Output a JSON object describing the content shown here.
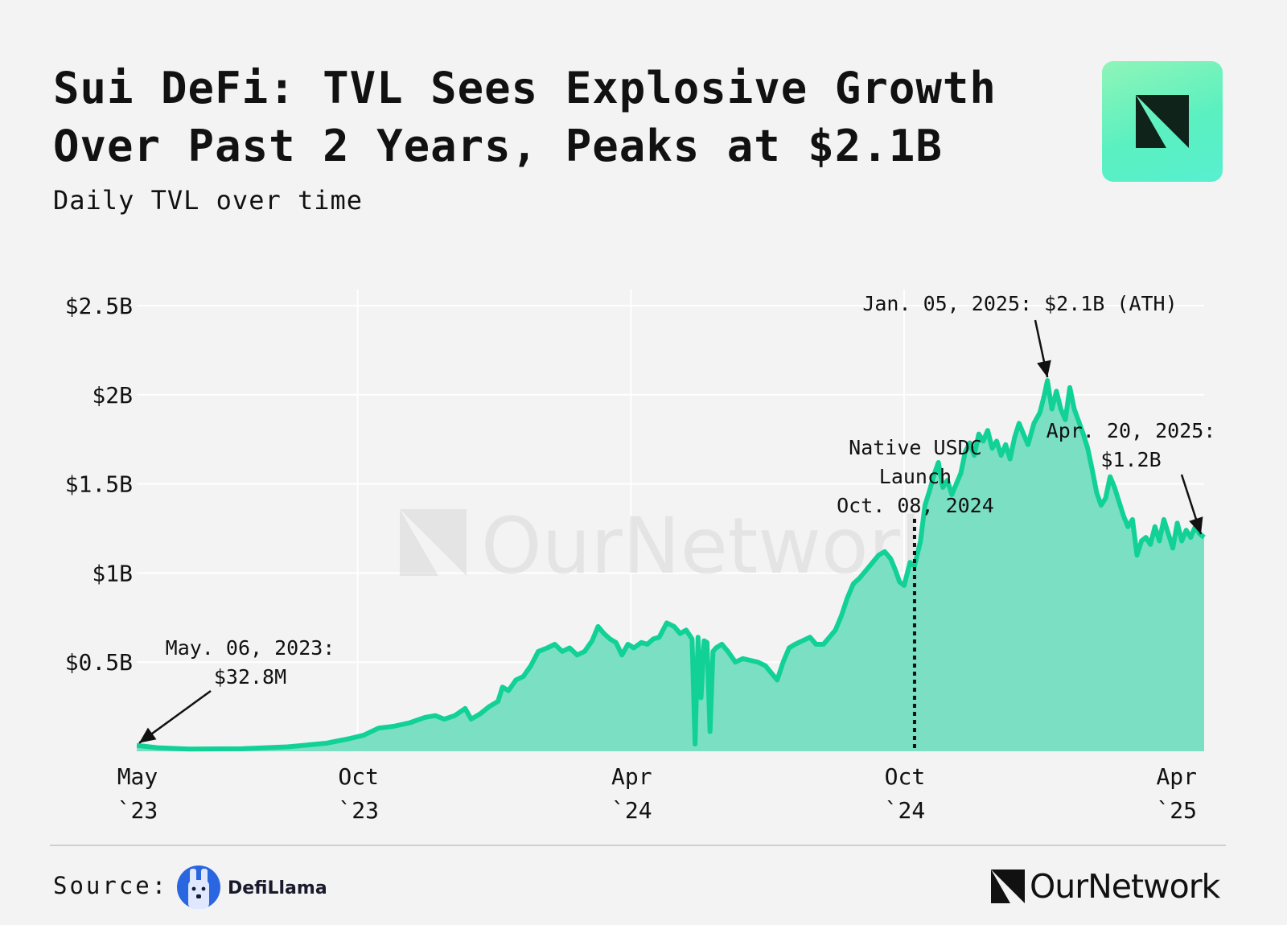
{
  "header": {
    "title": "Sui DeFi: TVL Sees Explosive Growth Over Past 2 Years, Peaks at $2.1B",
    "subtitle": "Daily TVL over time"
  },
  "watermark": "OurNetwork",
  "footer": {
    "source_label": "Source:",
    "source_name": "DefiLlama",
    "brand": "OurNetwork"
  },
  "colors": {
    "line": "#12d196",
    "fill": "#7bdfc4",
    "grid": "#ffffff",
    "badge": "#6ff2c0"
  },
  "chart_data": {
    "type": "area",
    "title": "Sui DeFi: TVL Sees Explosive Growth Over Past 2 Years, Peaks at $2.1B",
    "subtitle": "Daily TVL over time",
    "xlabel": "",
    "ylabel": "",
    "x_range": [
      "2023-05-06",
      "2025-04-20"
    ],
    "y_range": [
      0,
      2.6
    ],
    "y_unit": "$B",
    "yticks": [
      {
        "value": 0.5,
        "label": "$0.5B"
      },
      {
        "value": 1.0,
        "label": "$1B"
      },
      {
        "value": 1.5,
        "label": "$1.5B"
      },
      {
        "value": 2.0,
        "label": "$2B"
      },
      {
        "value": 2.5,
        "label": "$2.5B"
      }
    ],
    "xticks": [
      {
        "date": "2023-05-06",
        "line1": "May",
        "line2": "`23"
      },
      {
        "date": "2023-10-01",
        "line1": "Oct",
        "line2": "`23"
      },
      {
        "date": "2024-04-01",
        "line1": "Apr",
        "line2": "`24"
      },
      {
        "date": "2024-10-01",
        "line1": "Oct",
        "line2": "`24"
      },
      {
        "date": "2025-04-01",
        "line1": "Apr",
        "line2": "`25"
      }
    ],
    "grid": true,
    "series": [
      {
        "points": [
          [
            "2023-05-06",
            0.033
          ],
          [
            "2023-05-20",
            0.02
          ],
          [
            "2023-06-10",
            0.012
          ],
          [
            "2023-07-15",
            0.014
          ],
          [
            "2023-08-15",
            0.025
          ],
          [
            "2023-09-10",
            0.045
          ],
          [
            "2023-09-25",
            0.07
          ],
          [
            "2023-10-05",
            0.09
          ],
          [
            "2023-10-15",
            0.13
          ],
          [
            "2023-10-25",
            0.14
          ],
          [
            "2023-11-05",
            0.16
          ],
          [
            "2023-11-15",
            0.19
          ],
          [
            "2023-11-22",
            0.2
          ],
          [
            "2023-11-28",
            0.18
          ],
          [
            "2023-12-05",
            0.2
          ],
          [
            "2023-12-12",
            0.24
          ],
          [
            "2023-12-16",
            0.18
          ],
          [
            "2023-12-22",
            0.21
          ],
          [
            "2023-12-28",
            0.25
          ],
          [
            "2024-01-03",
            0.28
          ],
          [
            "2024-01-06",
            0.36
          ],
          [
            "2024-01-10",
            0.34
          ],
          [
            "2024-01-15",
            0.4
          ],
          [
            "2024-01-20",
            0.42
          ],
          [
            "2024-01-25",
            0.48
          ],
          [
            "2024-01-30",
            0.56
          ],
          [
            "2024-02-05",
            0.58
          ],
          [
            "2024-02-10",
            0.6
          ],
          [
            "2024-02-15",
            0.56
          ],
          [
            "2024-02-20",
            0.58
          ],
          [
            "2024-02-25",
            0.54
          ],
          [
            "2024-03-01",
            0.56
          ],
          [
            "2024-03-06",
            0.62
          ],
          [
            "2024-03-10",
            0.7
          ],
          [
            "2024-03-14",
            0.66
          ],
          [
            "2024-03-18",
            0.63
          ],
          [
            "2024-03-22",
            0.61
          ],
          [
            "2024-03-26",
            0.54
          ],
          [
            "2024-03-30",
            0.6
          ],
          [
            "2024-04-03",
            0.58
          ],
          [
            "2024-04-08",
            0.61
          ],
          [
            "2024-04-12",
            0.6
          ],
          [
            "2024-04-16",
            0.63
          ],
          [
            "2024-04-20",
            0.64
          ],
          [
            "2024-04-25",
            0.72
          ],
          [
            "2024-04-30",
            0.7
          ],
          [
            "2024-05-04",
            0.66
          ],
          [
            "2024-05-08",
            0.68
          ],
          [
            "2024-05-12",
            0.63
          ],
          [
            "2024-05-14",
            0.04
          ],
          [
            "2024-05-16",
            0.64
          ],
          [
            "2024-05-18",
            0.3
          ],
          [
            "2024-05-20",
            0.62
          ],
          [
            "2024-05-22",
            0.61
          ],
          [
            "2024-05-24",
            0.11
          ],
          [
            "2024-05-26",
            0.56
          ],
          [
            "2024-05-28",
            0.58
          ],
          [
            "2024-06-01",
            0.6
          ],
          [
            "2024-06-05",
            0.56
          ],
          [
            "2024-06-10",
            0.5
          ],
          [
            "2024-06-15",
            0.52
          ],
          [
            "2024-06-20",
            0.51
          ],
          [
            "2024-06-25",
            0.5
          ],
          [
            "2024-06-30",
            0.48
          ],
          [
            "2024-07-05",
            0.43
          ],
          [
            "2024-07-08",
            0.4
          ],
          [
            "2024-07-12",
            0.5
          ],
          [
            "2024-07-16",
            0.58
          ],
          [
            "2024-07-20",
            0.6
          ],
          [
            "2024-07-25",
            0.62
          ],
          [
            "2024-07-30",
            0.64
          ],
          [
            "2024-08-03",
            0.6
          ],
          [
            "2024-08-08",
            0.6
          ],
          [
            "2024-08-12",
            0.64
          ],
          [
            "2024-08-16",
            0.68
          ],
          [
            "2024-08-20",
            0.76
          ],
          [
            "2024-08-24",
            0.86
          ],
          [
            "2024-08-28",
            0.94
          ],
          [
            "2024-09-01",
            0.97
          ],
          [
            "2024-09-06",
            1.02
          ],
          [
            "2024-09-10",
            1.06
          ],
          [
            "2024-09-14",
            1.1
          ],
          [
            "2024-09-18",
            1.12
          ],
          [
            "2024-09-22",
            1.08
          ],
          [
            "2024-09-25",
            1.02
          ],
          [
            "2024-09-28",
            0.95
          ],
          [
            "2024-10-01",
            0.93
          ],
          [
            "2024-10-05",
            1.06
          ],
          [
            "2024-10-08",
            1.04
          ],
          [
            "2024-10-12",
            1.18
          ],
          [
            "2024-10-15",
            1.38
          ],
          [
            "2024-10-18",
            1.46
          ],
          [
            "2024-10-21",
            1.55
          ],
          [
            "2024-10-24",
            1.62
          ],
          [
            "2024-10-27",
            1.48
          ],
          [
            "2024-10-30",
            1.52
          ],
          [
            "2024-11-02",
            1.44
          ],
          [
            "2024-11-05",
            1.5
          ],
          [
            "2024-11-08",
            1.56
          ],
          [
            "2024-11-11",
            1.68
          ],
          [
            "2024-11-14",
            1.73
          ],
          [
            "2024-11-17",
            1.66
          ],
          [
            "2024-11-20",
            1.78
          ],
          [
            "2024-11-23",
            1.74
          ],
          [
            "2024-11-26",
            1.8
          ],
          [
            "2024-11-29",
            1.7
          ],
          [
            "2024-12-02",
            1.74
          ],
          [
            "2024-12-05",
            1.66
          ],
          [
            "2024-12-08",
            1.72
          ],
          [
            "2024-12-11",
            1.64
          ],
          [
            "2024-12-14",
            1.76
          ],
          [
            "2024-12-17",
            1.84
          ],
          [
            "2024-12-20",
            1.78
          ],
          [
            "2024-12-23",
            1.72
          ],
          [
            "2024-12-27",
            1.84
          ],
          [
            "2024-12-31",
            1.9
          ],
          [
            "2025-01-03",
            2.0
          ],
          [
            "2025-01-05",
            2.08
          ],
          [
            "2025-01-08",
            1.92
          ],
          [
            "2025-01-11",
            2.02
          ],
          [
            "2025-01-14",
            1.92
          ],
          [
            "2025-01-17",
            1.86
          ],
          [
            "2025-01-20",
            2.04
          ],
          [
            "2025-01-23",
            1.92
          ],
          [
            "2025-01-26",
            1.85
          ],
          [
            "2025-01-29",
            1.78
          ],
          [
            "2025-02-01",
            1.7
          ],
          [
            "2025-02-04",
            1.58
          ],
          [
            "2025-02-07",
            1.45
          ],
          [
            "2025-02-10",
            1.38
          ],
          [
            "2025-02-13",
            1.42
          ],
          [
            "2025-02-16",
            1.54
          ],
          [
            "2025-02-19",
            1.48
          ],
          [
            "2025-02-22",
            1.4
          ],
          [
            "2025-02-25",
            1.32
          ],
          [
            "2025-02-28",
            1.26
          ],
          [
            "2025-03-03",
            1.3
          ],
          [
            "2025-03-06",
            1.1
          ],
          [
            "2025-03-09",
            1.18
          ],
          [
            "2025-03-12",
            1.2
          ],
          [
            "2025-03-15",
            1.16
          ],
          [
            "2025-03-18",
            1.26
          ],
          [
            "2025-03-21",
            1.18
          ],
          [
            "2025-03-24",
            1.3
          ],
          [
            "2025-03-27",
            1.22
          ],
          [
            "2025-03-30",
            1.14
          ],
          [
            "2025-04-02",
            1.28
          ],
          [
            "2025-04-05",
            1.18
          ],
          [
            "2025-04-08",
            1.24
          ],
          [
            "2025-04-11",
            1.2
          ],
          [
            "2025-04-14",
            1.26
          ],
          [
            "2025-04-17",
            1.22
          ],
          [
            "2025-04-20",
            1.2
          ]
        ]
      }
    ],
    "event_line": {
      "date": "2024-10-08",
      "label_lines": [
        "Native USDC",
        "Launch",
        "Oct. 08, 2024"
      ]
    },
    "annotations": [
      {
        "lines": [
          "May. 06, 2023:",
          "$32.8M"
        ],
        "target_date": "2023-05-06",
        "target_value": 0.033
      },
      {
        "lines": [
          "Jan. 05, 2025: $2.1B (ATH)"
        ],
        "target_date": "2025-01-05",
        "target_value": 2.08
      },
      {
        "lines": [
          "Apr. 20, 2025:",
          "$1.2B"
        ],
        "target_date": "2025-04-20",
        "target_value": 1.2
      }
    ]
  }
}
